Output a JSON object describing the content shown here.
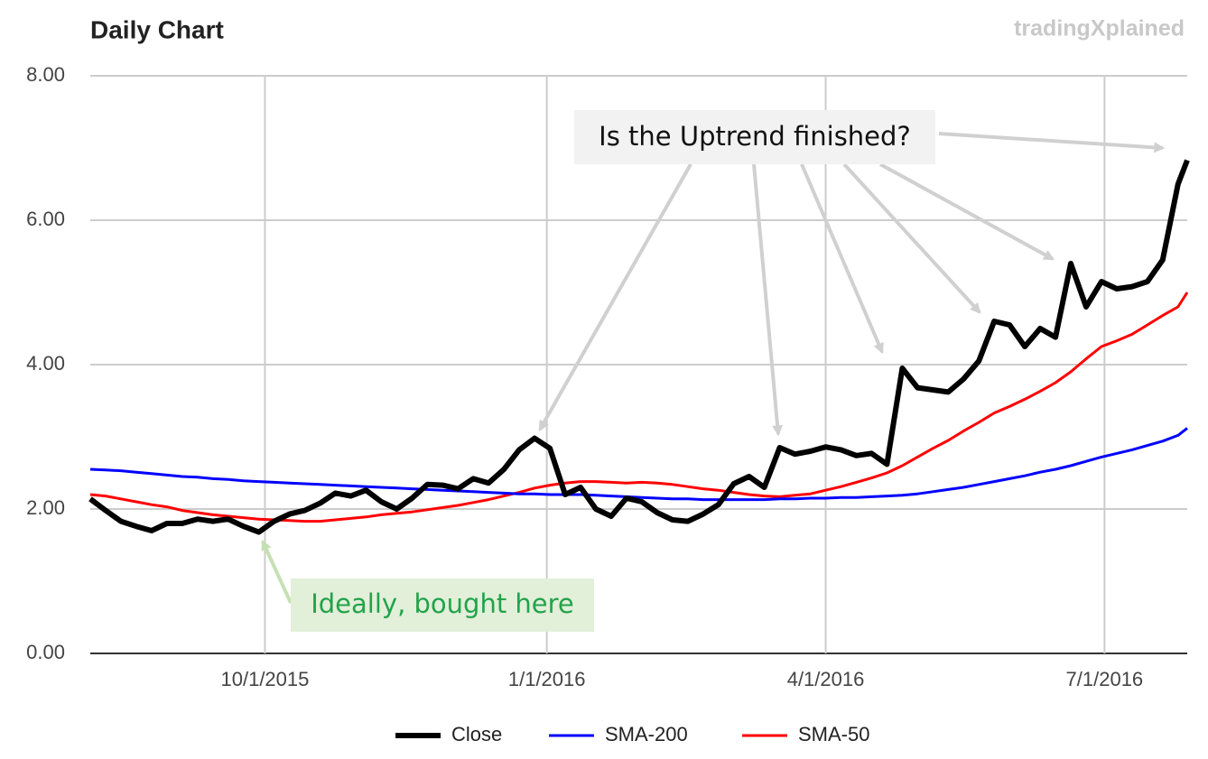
{
  "chart_data": {
    "type": "line",
    "title": "Daily Chart",
    "watermark": "tradingXplained",
    "annotations": [
      {
        "text": "Is the Uptrend finished?"
      },
      {
        "text": "Ideally, bought here"
      }
    ],
    "x": [
      "8/5/2015",
      "8/10/2015",
      "8/15/2015",
      "8/20/2015",
      "8/25/2015",
      "8/30/2015",
      "9/4/2015",
      "9/9/2015",
      "9/14/2015",
      "9/19/2015",
      "9/24/2015",
      "9/29/2015",
      "10/4/2015",
      "10/9/2015",
      "10/14/2015",
      "10/19/2015",
      "10/24/2015",
      "10/29/2015",
      "11/3/2015",
      "11/8/2015",
      "11/13/2015",
      "11/18/2015",
      "11/23/2015",
      "11/28/2015",
      "12/3/2015",
      "12/8/2015",
      "12/13/2015",
      "12/18/2015",
      "12/23/2015",
      "12/28/2015",
      "1/2/2016",
      "1/7/2016",
      "1/12/2016",
      "1/17/2016",
      "1/22/2016",
      "1/27/2016",
      "2/1/2016",
      "2/6/2016",
      "2/11/2016",
      "2/16/2016",
      "2/21/2016",
      "2/26/2016",
      "3/2/2016",
      "3/7/2016",
      "3/12/2016",
      "3/17/2016",
      "3/22/2016",
      "3/27/2016",
      "4/1/2016",
      "4/6/2016",
      "4/11/2016",
      "4/16/2016",
      "4/21/2016",
      "4/26/2016",
      "5/1/2016",
      "5/6/2016",
      "5/11/2016",
      "5/16/2016",
      "5/21/2016",
      "5/26/2016",
      "5/31/2016",
      "6/5/2016",
      "6/10/2016",
      "6/15/2016",
      "6/20/2016",
      "6/25/2016",
      "6/30/2016",
      "7/5/2016",
      "7/10/2016",
      "7/15/2016",
      "7/20/2016",
      "7/25/2016",
      "7/28/2016"
    ],
    "series": [
      {
        "name": "Close",
        "color": "#000000",
        "values": [
          2.14,
          1.98,
          1.83,
          1.76,
          1.7,
          1.8,
          1.8,
          1.86,
          1.83,
          1.86,
          1.76,
          1.68,
          1.83,
          1.93,
          1.98,
          2.08,
          2.22,
          2.18,
          2.26,
          2.1,
          2.0,
          2.15,
          2.34,
          2.33,
          2.28,
          2.42,
          2.36,
          2.55,
          2.82,
          2.98,
          2.84,
          2.2,
          2.3,
          2.0,
          1.9,
          2.15,
          2.1,
          1.95,
          1.85,
          1.83,
          1.93,
          2.06,
          2.35,
          2.45,
          2.3,
          2.85,
          2.76,
          2.8,
          2.86,
          2.82,
          2.74,
          2.77,
          2.62,
          3.95,
          3.68,
          3.65,
          3.62,
          3.8,
          4.05,
          4.6,
          4.55,
          4.25,
          4.5,
          4.38,
          5.4,
          4.8,
          5.15,
          5.05,
          5.08,
          5.15,
          5.45,
          6.5,
          6.83
        ]
      },
      {
        "name": "SMA-200",
        "color": "#0000ff",
        "values": [
          2.55,
          2.54,
          2.53,
          2.51,
          2.49,
          2.47,
          2.45,
          2.44,
          2.42,
          2.41,
          2.39,
          2.38,
          2.37,
          2.36,
          2.35,
          2.34,
          2.33,
          2.32,
          2.31,
          2.3,
          2.29,
          2.28,
          2.27,
          2.26,
          2.25,
          2.24,
          2.23,
          2.22,
          2.21,
          2.21,
          2.2,
          2.2,
          2.2,
          2.19,
          2.18,
          2.17,
          2.16,
          2.15,
          2.14,
          2.14,
          2.13,
          2.13,
          2.13,
          2.13,
          2.13,
          2.14,
          2.14,
          2.15,
          2.15,
          2.16,
          2.16,
          2.17,
          2.18,
          2.19,
          2.21,
          2.24,
          2.27,
          2.3,
          2.34,
          2.38,
          2.42,
          2.46,
          2.51,
          2.55,
          2.6,
          2.66,
          2.72,
          2.77,
          2.82,
          2.88,
          2.94,
          3.02,
          3.12
        ]
      },
      {
        "name": "SMA-50",
        "color": "#ff0000",
        "values": [
          2.2,
          2.18,
          2.14,
          2.1,
          2.06,
          2.03,
          1.98,
          1.95,
          1.92,
          1.9,
          1.88,
          1.86,
          1.85,
          1.84,
          1.83,
          1.83,
          1.85,
          1.87,
          1.89,
          1.92,
          1.94,
          1.96,
          1.99,
          2.02,
          2.05,
          2.09,
          2.13,
          2.18,
          2.23,
          2.29,
          2.33,
          2.36,
          2.38,
          2.38,
          2.37,
          2.36,
          2.37,
          2.36,
          2.34,
          2.31,
          2.28,
          2.26,
          2.23,
          2.2,
          2.18,
          2.17,
          2.19,
          2.21,
          2.26,
          2.31,
          2.37,
          2.43,
          2.5,
          2.6,
          2.72,
          2.84,
          2.95,
          3.08,
          3.2,
          3.33,
          3.42,
          3.52,
          3.63,
          3.75,
          3.9,
          4.08,
          4.25,
          4.33,
          4.42,
          4.55,
          4.68,
          4.8,
          5.0
        ]
      }
    ],
    "xlim": [
      "8/5/2015",
      "7/28/2016"
    ],
    "xticks": [
      "10/1/2015",
      "1/1/2016",
      "4/1/2016",
      "7/1/2016"
    ],
    "ylim": [
      0,
      8
    ],
    "yticks": [
      {
        "value": 0,
        "label": "0.00"
      },
      {
        "value": 2,
        "label": "2.00"
      },
      {
        "value": 4,
        "label": "4.00"
      },
      {
        "value": 6,
        "label": "6.00"
      },
      {
        "value": 8,
        "label": "8.00"
      }
    ],
    "grid": true,
    "legend": "bottom"
  }
}
